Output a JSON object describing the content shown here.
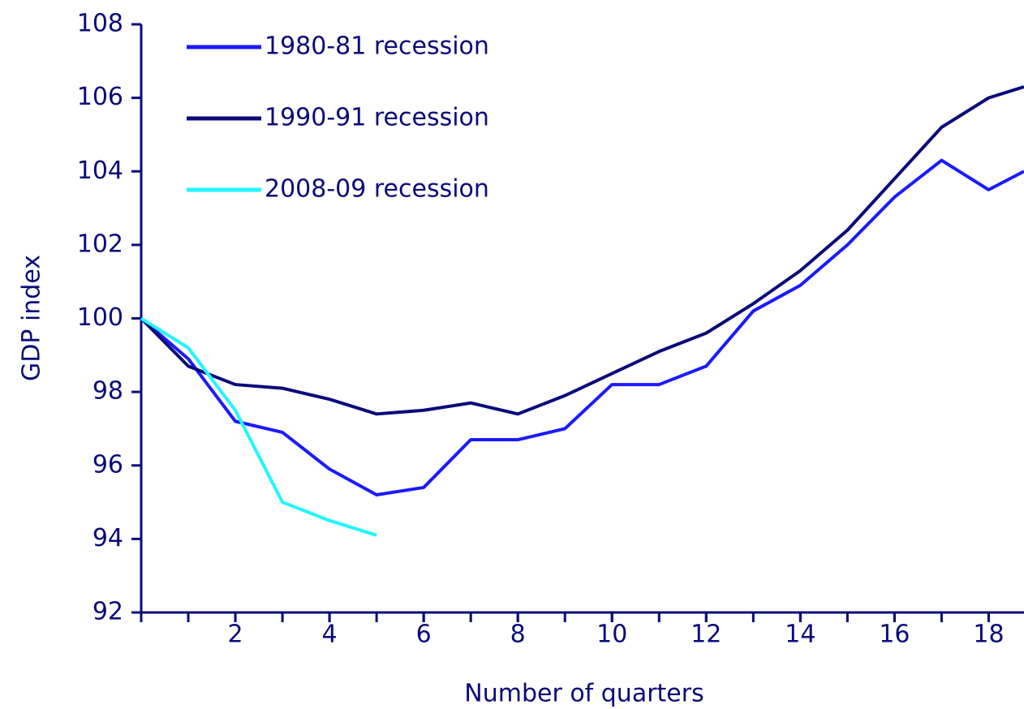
{
  "chart_data": {
    "type": "line",
    "xlabel": "Number of quarters",
    "ylabel": "GDP index",
    "x": [
      0,
      1,
      2,
      3,
      4,
      5,
      6,
      7,
      8,
      9,
      10,
      11,
      12,
      13,
      14,
      15,
      16,
      17,
      18,
      18.75
    ],
    "series": [
      {
        "name": "1980-81 recession",
        "color": "#1a1aff",
        "values": [
          100,
          98.9,
          97.2,
          96.9,
          95.9,
          95.2,
          95.4,
          96.7,
          96.7,
          97.0,
          98.2,
          98.2,
          98.7,
          100.2,
          100.9,
          102.0,
          103.3,
          104.3,
          103.5,
          104.0
        ]
      },
      {
        "name": "1990-91 recession",
        "color": "#0a0a7a",
        "values": [
          100,
          98.7,
          98.2,
          98.1,
          97.8,
          97.4,
          97.5,
          97.7,
          97.4,
          97.9,
          98.5,
          99.1,
          99.6,
          100.4,
          101.3,
          102.4,
          103.8,
          105.2,
          106.0,
          106.3
        ]
      },
      {
        "name": "2008-09 recession",
        "color": "#22f5ff",
        "values": [
          100,
          99.2,
          97.5,
          95.0,
          94.5,
          94.1,
          null,
          null,
          null,
          null,
          null,
          null,
          null,
          null,
          null,
          null,
          null,
          null,
          null,
          null
        ]
      }
    ],
    "xlim": [
      0,
      18.75
    ],
    "xticks": [
      2,
      4,
      6,
      8,
      10,
      12,
      14,
      16,
      18
    ],
    "ylim": [
      92,
      108
    ],
    "yticks": [
      92,
      94,
      96,
      98,
      100,
      102,
      104,
      106,
      108
    ],
    "axis_color": "#0a0a7a",
    "legend": "upper left"
  }
}
